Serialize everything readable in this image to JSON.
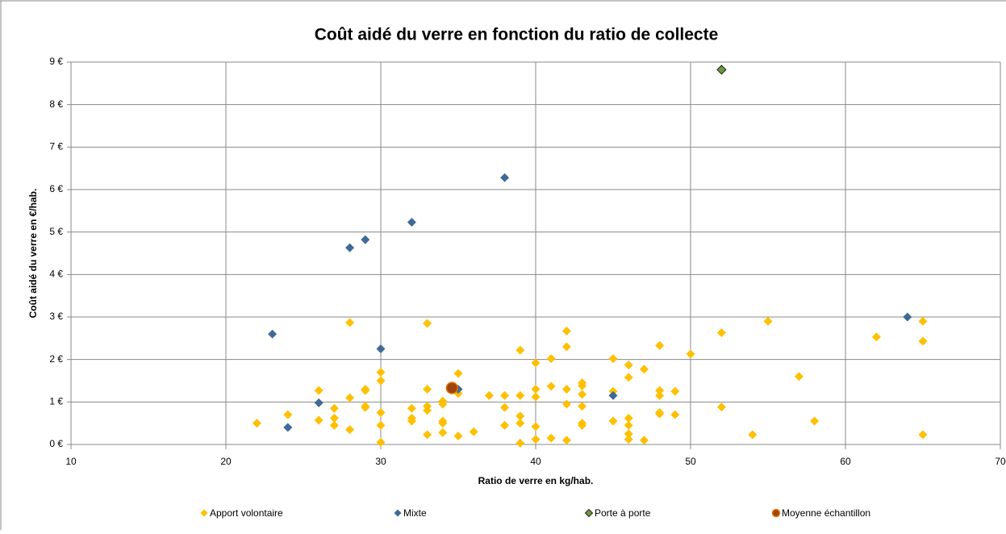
{
  "chart_data": {
    "type": "scatter",
    "title": "Coût aidé du verre en fonction du ratio de collecte",
    "x_label": "Ratio de verre en kg/hab.",
    "y_label": "Coût aidé du verre en €/hab.",
    "xlim": [
      10,
      70
    ],
    "xticks": [
      10,
      20,
      30,
      40,
      50,
      60,
      70
    ],
    "ylim": [
      0,
      9
    ],
    "yticks": [
      {
        "value": 0,
        "label": "0 €"
      },
      {
        "value": 1,
        "label": "1 €"
      },
      {
        "value": 2,
        "label": "2 €"
      },
      {
        "value": 3,
        "label": "3 €"
      },
      {
        "value": 4,
        "label": "4 €"
      },
      {
        "value": 5,
        "label": "5 €"
      },
      {
        "value": 6,
        "label": "6 €"
      },
      {
        "value": 7,
        "label": "7 €"
      },
      {
        "value": 8,
        "label": "8 €"
      },
      {
        "value": 9,
        "label": "9 €"
      }
    ],
    "grid": true,
    "legend": "bottom",
    "series": [
      {
        "name": "Apport volontaire",
        "color": "#FFC000",
        "marker": "diamond",
        "x": [
          22,
          24,
          26,
          26,
          27,
          27,
          27,
          28,
          28,
          28,
          29,
          29,
          29,
          29,
          30,
          30,
          30,
          30,
          30,
          32,
          32,
          32,
          33,
          33,
          33,
          33,
          33,
          34,
          34,
          34,
          34,
          34,
          35,
          35,
          35,
          36,
          37,
          38,
          38,
          38,
          39,
          39,
          39,
          39,
          39,
          40,
          40,
          40,
          40,
          40,
          41,
          41,
          41,
          42,
          42,
          42,
          42,
          42,
          43,
          43,
          43,
          43,
          43,
          43,
          45,
          45,
          45,
          46,
          46,
          46,
          46,
          46,
          46,
          47,
          47,
          48,
          48,
          48,
          48,
          48,
          49,
          49,
          50,
          52,
          52,
          54,
          55,
          57,
          58,
          62,
          65,
          65,
          65
        ],
        "y": [
          0.5,
          0.7,
          1.27,
          0.57,
          0.85,
          0.62,
          0.45,
          2.87,
          1.1,
          0.35,
          1.3,
          1.27,
          0.9,
          0.87,
          1.7,
          1.5,
          0.75,
          0.45,
          0.05,
          0.85,
          0.62,
          0.55,
          2.85,
          1.3,
          0.9,
          0.8,
          0.23,
          1.02,
          0.95,
          0.55,
          0.5,
          0.28,
          1.67,
          1.2,
          0.2,
          0.3,
          1.15,
          1.15,
          0.87,
          0.45,
          2.22,
          1.15,
          0.67,
          0.5,
          0.03,
          1.92,
          1.3,
          1.12,
          0.42,
          0.12,
          2.02,
          1.37,
          0.15,
          2.67,
          2.3,
          1.3,
          0.95,
          0.1,
          1.45,
          1.38,
          1.18,
          0.9,
          0.5,
          0.45,
          2.02,
          1.25,
          0.55,
          1.87,
          1.58,
          0.62,
          0.45,
          0.25,
          0.12,
          1.77,
          0.1,
          2.33,
          1.27,
          1.15,
          0.75,
          0.72,
          1.25,
          0.7,
          2.13,
          2.63,
          0.88,
          0.23,
          2.9,
          1.6,
          0.55,
          2.53,
          2.9,
          2.43,
          0.23
        ]
      },
      {
        "name": "Mixte",
        "color": "#3F6A98",
        "marker": "diamond",
        "x": [
          23,
          24,
          26,
          28,
          29,
          30,
          32,
          35,
          38,
          45,
          64
        ],
        "y": [
          2.6,
          0.4,
          0.98,
          4.63,
          4.82,
          2.25,
          5.23,
          1.3,
          6.28,
          1.15,
          3.0
        ]
      },
      {
        "name": "Porte à porte",
        "color": "#6A9A3A",
        "marker": "diamond",
        "x": [
          52
        ],
        "y": [
          8.82
        ]
      },
      {
        "name": "Moyenne échantillon",
        "color": "#A0440C",
        "marker": "circle",
        "x": [
          34.6
        ],
        "y": [
          1.33
        ]
      }
    ]
  }
}
